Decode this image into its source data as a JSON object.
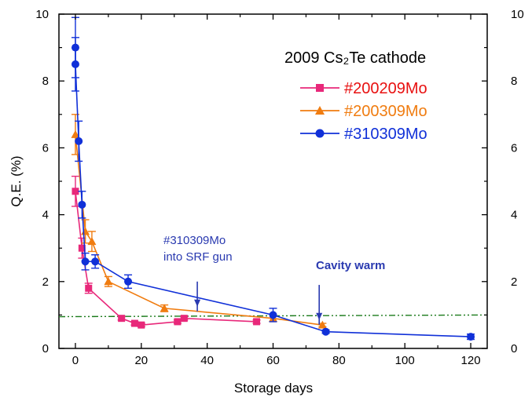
{
  "chart_data": {
    "type": "line",
    "title": "2009 Cs₂Te cathode",
    "xlabel": "Storage days",
    "ylabel": "Q.E. (%)",
    "xlim": [
      -5,
      125
    ],
    "ylim": [
      0,
      10
    ],
    "x_ticks": [
      "0",
      "20",
      "40",
      "60",
      "80",
      "100",
      "120"
    ],
    "y_ticks": [
      "0",
      "2",
      "4",
      "6",
      "8",
      "10"
    ],
    "legend_placement": "top-right",
    "grid": false,
    "series": [
      {
        "name": "#200209Mo",
        "color": "#e8287a",
        "legend_color": "#e81010",
        "marker": "square",
        "points": [
          {
            "x": 0,
            "y": 4.7,
            "err": 0.45
          },
          {
            "x": 2,
            "y": 3.0,
            "err": 0.3
          },
          {
            "x": 4,
            "y": 1.8,
            "err": 0.15
          },
          {
            "x": 14,
            "y": 0.9,
            "err": 0.05
          },
          {
            "x": 18,
            "y": 0.75,
            "err": 0.05
          },
          {
            "x": 20,
            "y": 0.7,
            "err": 0.05
          },
          {
            "x": 31,
            "y": 0.8,
            "err": 0.05
          },
          {
            "x": 33,
            "y": 0.9,
            "err": 0.05
          },
          {
            "x": 55,
            "y": 0.8,
            "err": 0.05
          }
        ]
      },
      {
        "name": "#200309Mo",
        "color": "#f07c10",
        "legend_color": "#f07c10",
        "marker": "triangle",
        "points": [
          {
            "x": 0,
            "y": 6.4,
            "err": 0.6
          },
          {
            "x": 3,
            "y": 3.5,
            "err": 0.35
          },
          {
            "x": 5,
            "y": 3.2,
            "err": 0.3
          },
          {
            "x": 10,
            "y": 2.0,
            "err": 0.15
          },
          {
            "x": 27,
            "y": 1.2,
            "err": 0.1
          },
          {
            "x": 60,
            "y": 0.9,
            "err": 0.1
          },
          {
            "x": 75,
            "y": 0.7,
            "err": 0.05
          }
        ]
      },
      {
        "name": "#310309Mo",
        "color": "#1030d8",
        "legend_color": "#1030d8",
        "marker": "circle",
        "points": [
          {
            "x": 0,
            "y": 9.0,
            "err": 0.9
          },
          {
            "x": 0,
            "y": 8.5,
            "err": 0.8
          },
          {
            "x": 1,
            "y": 6.2,
            "err": 0.6
          },
          {
            "x": 2,
            "y": 4.3,
            "err": 0.4
          },
          {
            "x": 3,
            "y": 2.6,
            "err": 0.25
          },
          {
            "x": 6,
            "y": 2.6,
            "err": 0.2
          },
          {
            "x": 16,
            "y": 2.0,
            "err": 0.2
          },
          {
            "x": 60,
            "y": 1.0,
            "err": 0.2
          },
          {
            "x": 76,
            "y": 0.5,
            "err": 0.05
          },
          {
            "x": 120,
            "y": 0.35,
            "err": 0.08
          }
        ]
      }
    ],
    "reference_line": {
      "y": 0.95,
      "y_end": 1.0,
      "color": "#1a7a1a",
      "style": "dash-dot-dot"
    },
    "annotations": [
      {
        "text_lines": [
          "#310309Mo",
          "into SRF gun"
        ],
        "color": "#2a3ab0",
        "arrow_x": 37,
        "arrow_from_y": 2.0,
        "arrow_to_y": 1.25
      },
      {
        "text_lines": [
          "Cavity warm"
        ],
        "color": "#2a3ab0",
        "bold": true,
        "arrow_x": 74,
        "arrow_from_y": 1.9,
        "arrow_to_y": 0.85
      }
    ]
  }
}
